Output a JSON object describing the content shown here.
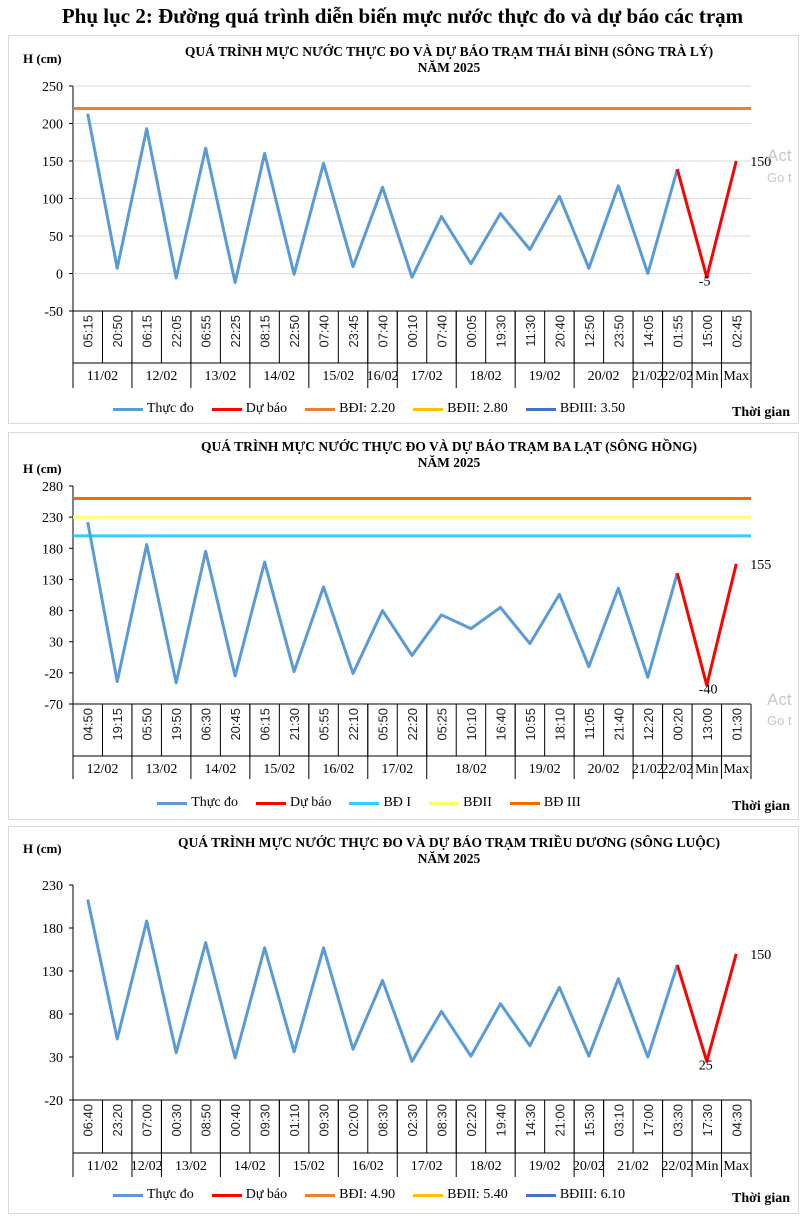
{
  "heading": "Phụ lục 2: Đường quá trình diễn biến mực nước thực đo và dự báo các trạm",
  "watermark": {
    "line1": "Act",
    "line2": "Go t"
  },
  "chart_data": [
    {
      "type": "line",
      "title": "QUÁ TRÌNH MỰC NƯỚC THỰC ĐO VÀ DỰ BÁO TRẠM THÁI BÌNH (SÔNG TRÀ LÝ)",
      "subtitle": "NĂM 2025",
      "ylabel": "H (cm)",
      "xlabel": "Thời gian",
      "ylim": [
        -50,
        250
      ],
      "yticks": [
        -50,
        0,
        50,
        100,
        150,
        200,
        250
      ],
      "grid": true,
      "categories": [
        "05:15",
        "20:50",
        "06:15",
        "22:05",
        "06:55",
        "22:25",
        "08:15",
        "22:50",
        "07:40",
        "23:45",
        "07:40",
        "00:10",
        "07:40",
        "00:05",
        "19:30",
        "11:30",
        "20:40",
        "12:50",
        "23:50",
        "14:05",
        "01:55",
        "15:00",
        "02:45"
      ],
      "groups": [
        {
          "label": "11/02",
          "span": 2
        },
        {
          "label": "12/02",
          "span": 2
        },
        {
          "label": "13/02",
          "span": 2
        },
        {
          "label": "14/02",
          "span": 2
        },
        {
          "label": "15/02",
          "span": 2
        },
        {
          "label": "16/02",
          "span": 1
        },
        {
          "label": "17/02",
          "span": 2
        },
        {
          "label": "18/02",
          "span": 2
        },
        {
          "label": "19/02",
          "span": 2
        },
        {
          "label": "20/02",
          "span": 2
        },
        {
          "label": "21/02",
          "span": 1
        },
        {
          "label": "22/02",
          "span": 1
        },
        {
          "label": "Min",
          "span": 1
        },
        {
          "label": "Max",
          "span": 1
        }
      ],
      "series": [
        {
          "name": "Thực đo",
          "color": "#5b9bd5",
          "values": [
            213,
            7,
            193,
            -6,
            167,
            -12,
            160,
            -1,
            147,
            9,
            115,
            -5,
            76,
            13,
            80,
            32,
            103,
            7,
            117,
            0,
            139,
            null,
            null
          ]
        },
        {
          "name": "Dự báo",
          "color": "#ff0000",
          "values": [
            null,
            null,
            null,
            null,
            null,
            null,
            null,
            null,
            null,
            null,
            null,
            null,
            null,
            null,
            null,
            null,
            null,
            null,
            null,
            null,
            139,
            -5,
            150
          ]
        }
      ],
      "levels": [
        {
          "name": "BĐI: 2.20",
          "color": "#ed7d31",
          "value": 220
        },
        {
          "name": "BĐII: 2.80",
          "color": "#ffc000",
          "value": null
        },
        {
          "name": "BĐIII: 3.50",
          "color": "#4472c4",
          "value": null
        }
      ],
      "annotations": [
        {
          "text": "150",
          "index": 22,
          "value": 150
        },
        {
          "text": "-5",
          "index": 21,
          "value": -5
        }
      ]
    },
    {
      "type": "line",
      "title": "QUÁ TRÌNH MỰC NƯỚC THỰC ĐO VÀ DỰ BÁO TRẠM BA LẠT (SÔNG HỒNG)",
      "subtitle": "NĂM 2025",
      "ylabel": "H (cm)",
      "xlabel": "Thời gian",
      "ylim": [
        -70,
        280
      ],
      "yticks": [
        -70,
        -20,
        30,
        80,
        130,
        180,
        230,
        280
      ],
      "grid": false,
      "categories": [
        "04:50",
        "19:15",
        "05:50",
        "19:50",
        "06:30",
        "20:45",
        "06:15",
        "21:30",
        "05:55",
        "22:10",
        "05:50",
        "22:20",
        "05:25",
        "10:10",
        "16:40",
        "10:55",
        "18:10",
        "11:05",
        "21:40",
        "12:20",
        "00:20",
        "13:00",
        "01:30"
      ],
      "groups": [
        {
          "label": "12/02",
          "span": 2
        },
        {
          "label": "13/02",
          "span": 2
        },
        {
          "label": "14/02",
          "span": 2
        },
        {
          "label": "15/02",
          "span": 2
        },
        {
          "label": "16/02",
          "span": 2
        },
        {
          "label": "17/02",
          "span": 2
        },
        {
          "label": "18/02",
          "span": 3
        },
        {
          "label": "19/02",
          "span": 2
        },
        {
          "label": "20/02",
          "span": 2
        },
        {
          "label": "21/02",
          "span": 1
        },
        {
          "label": "22/02",
          "span": 1
        },
        {
          "label": "Min",
          "span": 1
        },
        {
          "label": "Max",
          "span": 1
        }
      ],
      "series": [
        {
          "name": "Thực đo",
          "color": "#5b9bd5",
          "values": [
            222,
            -34,
            186,
            -36,
            175,
            -25,
            158,
            -18,
            118,
            -21,
            80,
            8,
            73,
            51,
            85,
            27,
            106,
            -10,
            116,
            -27,
            140,
            null,
            null
          ]
        },
        {
          "name": "Dự báo",
          "color": "#ff0000",
          "values": [
            null,
            null,
            null,
            null,
            null,
            null,
            null,
            null,
            null,
            null,
            null,
            null,
            null,
            null,
            null,
            null,
            null,
            null,
            null,
            null,
            140,
            -40,
            155
          ]
        }
      ],
      "levels": [
        {
          "name": "BĐ I",
          "color": "#33ccff",
          "value": 200
        },
        {
          "name": "BĐII",
          "color": "#ffff66",
          "value": 230
        },
        {
          "name": "BĐ III",
          "color": "#ff6600",
          "value": 260
        }
      ],
      "annotations": [
        {
          "text": "155",
          "index": 22,
          "value": 155
        },
        {
          "text": "-40",
          "index": 21,
          "value": -40
        }
      ]
    },
    {
      "type": "line",
      "title": "QUÁ TRÌNH MỰC NƯỚC THỰC ĐO VÀ DỰ BÁO TRẠM TRIỀU DƯƠNG (SÔNG LUỘC)",
      "subtitle": "NĂM 2025",
      "ylabel": "H (cm)",
      "xlabel": "Thời gian",
      "ylim": [
        -20,
        230
      ],
      "yticks": [
        -20,
        30,
        80,
        130,
        180,
        230
      ],
      "grid": false,
      "categories": [
        "06:40",
        "23:20",
        "07:00",
        "00:30",
        "08:50",
        "00:40",
        "09:30",
        "01:10",
        "09:30",
        "02:00",
        "08:30",
        "02:30",
        "08:30",
        "02:20",
        "19:40",
        "14:30",
        "21:00",
        "15:30",
        "03:10",
        "17:00",
        "03:30",
        "17:30",
        "04:30"
      ],
      "groups": [
        {
          "label": "11/02",
          "span": 2
        },
        {
          "label": "12/02",
          "span": 1
        },
        {
          "label": "13/02",
          "span": 2
        },
        {
          "label": "14/02",
          "span": 2
        },
        {
          "label": "15/02",
          "span": 2
        },
        {
          "label": "16/02",
          "span": 2
        },
        {
          "label": "17/02",
          "span": 2
        },
        {
          "label": "18/02",
          "span": 2
        },
        {
          "label": "19/02",
          "span": 2
        },
        {
          "label": "20/02",
          "span": 1
        },
        {
          "label": "21/02",
          "span": 2
        },
        {
          "label": "22/02",
          "span": 1
        },
        {
          "label": "Min",
          "span": 1
        },
        {
          "label": "Max",
          "span": 1
        }
      ],
      "series": [
        {
          "name": "Thực đo",
          "color": "#5b9bd5",
          "values": [
            213,
            51,
            188,
            35,
            163,
            29,
            157,
            36,
            157,
            39,
            119,
            25,
            83,
            31,
            92,
            43,
            111,
            31,
            121,
            30,
            137,
            null,
            null
          ]
        },
        {
          "name": "Dự báo",
          "color": "#ff0000",
          "values": [
            null,
            null,
            null,
            null,
            null,
            null,
            null,
            null,
            null,
            null,
            null,
            null,
            null,
            null,
            null,
            null,
            null,
            null,
            null,
            null,
            137,
            25,
            150
          ]
        }
      ],
      "levels": [
        {
          "name": "BĐI: 4.90",
          "color": "#ed7d31",
          "value": null
        },
        {
          "name": "BĐII: 5.40",
          "color": "#ffc000",
          "value": null
        },
        {
          "name": "BĐIII: 6.10",
          "color": "#4472c4",
          "value": null
        }
      ],
      "annotations": [
        {
          "text": "150",
          "index": 22,
          "value": 150
        },
        {
          "text": "25",
          "index": 21,
          "value": 25
        }
      ]
    }
  ]
}
